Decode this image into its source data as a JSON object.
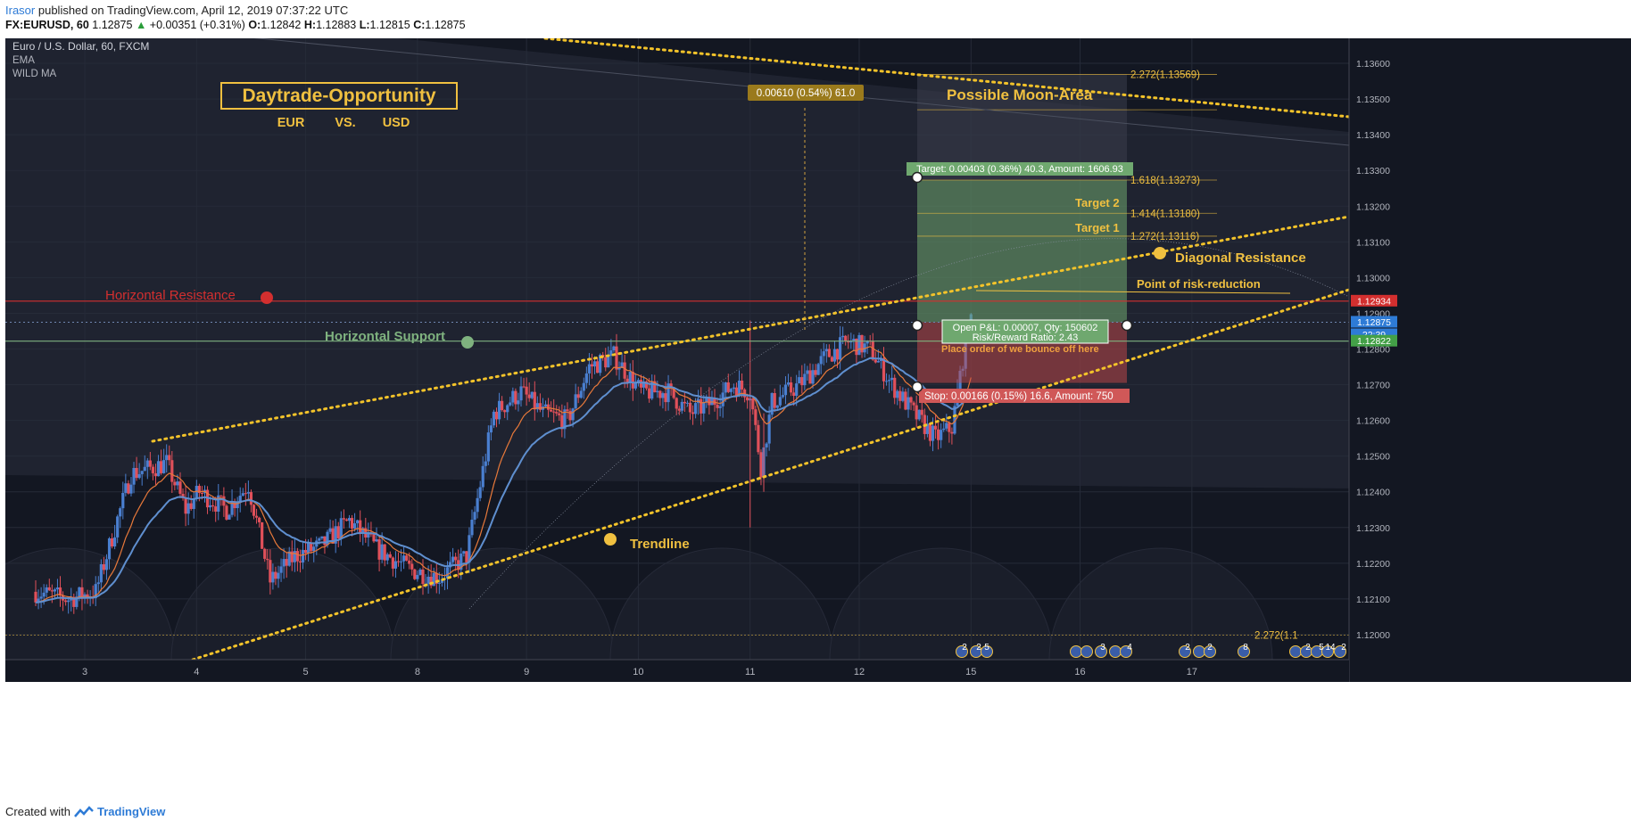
{
  "header": {
    "user": "Irasor",
    "published_text": "published on TradingView.com, April 12, 2019 07:37:22 UTC",
    "symbol": "FX:EURUSD, 60",
    "price": "1.12875",
    "change_arrow": "▲",
    "change": "+0.00351 (+0.31%)",
    "ohlc": [
      {
        "k": "O:",
        "v": "1.12842"
      },
      {
        "k": "H:",
        "v": "1.12883"
      },
      {
        "k": "L:",
        "v": "1.12815"
      },
      {
        "k": "C:",
        "v": "1.12875"
      }
    ]
  },
  "legend": {
    "instrument": "Euro / U.S. Dollar, 60, FXCM",
    "indicators": [
      "EMA",
      "WILD MA"
    ]
  },
  "annotations": {
    "title": "Daytrade-Opportunity",
    "pair": [
      "EUR",
      "VS.",
      "USD"
    ],
    "moon": "Possible Moon-Area",
    "horizontal_resistance": "Horizontal Resistance",
    "horizontal_support": "Horizontal Support",
    "trendline": "Trendline",
    "diagonal_resistance": "Diagonal Resistance",
    "risk_reduction": "Point of risk-reduction",
    "target1": "Target 1",
    "target2": "Target 2",
    "measure": "0.00610 (0.54%) 61.0",
    "target_box": "Target: 0.00403 (0.36%) 40.3, Amount: 1606.93",
    "pnl": "Open P&L: 0.00007, Qty: 150602",
    "rr": "Risk/Reward Ratio: 2.43",
    "bounce": "Place order of we bounce off here",
    "stop_box": "Stop: 0.00166 (0.15%) 16.6, Amount: 750",
    "fib": [
      {
        "label": "2.272(1.13569)",
        "price": 1.13569
      },
      {
        "label": "1.618(1.13273)",
        "price": 1.13273
      },
      {
        "label": "1.414(1.13180)",
        "price": 1.1318
      },
      {
        "label": "1.272(1.13116)",
        "price": 1.13116
      }
    ],
    "fib_bottom": "2.272(1.1",
    "event_badges": [
      "2",
      "2",
      "5",
      "3",
      "4",
      "2",
      "2",
      "8",
      "2",
      "5",
      "14",
      "2"
    ]
  },
  "footer": {
    "created": "Created with",
    "brand": "TradingView"
  },
  "colors": {
    "bg": "#131722",
    "up": "#4a7fd0",
    "down": "#e0505a",
    "dotted": "#f3c32a",
    "resistance": "#d32f2f",
    "support": "#7fb27f",
    "target": "#6fa86f",
    "stop": "#c94a4a",
    "ema": "#e8793a",
    "wild_ma": "#5f8fcf",
    "annotation": "#f0c040"
  },
  "chart_data": {
    "type": "candlestick",
    "title": "Euro / U.S. Dollar, 60, FXCM",
    "x_ticks": [
      "3",
      "4",
      "5",
      "8",
      "9",
      "10",
      "11",
      "12",
      "15",
      "16",
      "17"
    ],
    "ylim": [
      1.1193,
      1.1367
    ],
    "y_ticks": [
      "1.13600",
      "1.13500",
      "1.13400",
      "1.13300",
      "1.13200",
      "1.13100",
      "1.13000",
      "1.12900",
      "1.12800",
      "1.12700",
      "1.12600",
      "1.12500",
      "1.12400",
      "1.12300",
      "1.12200",
      "1.12100",
      "1.12000"
    ],
    "price_tags": [
      {
        "label": "1.12934",
        "price": 1.12934,
        "color": "#d32f2f"
      },
      {
        "label": "1.12875",
        "price": 1.12875,
        "color": "#2e7bd6"
      },
      {
        "label": "22:39",
        "price": 1.1284,
        "color": "#2e7bd6"
      },
      {
        "label": "1.12822",
        "price": 1.12822,
        "color": "#43a047"
      }
    ],
    "horizontal_resistance": 1.12934,
    "horizontal_support": 1.12822,
    "trade": {
      "entry": 1.12875,
      "target": 1.13273,
      "stop": 1.12705
    },
    "close_path": [
      [
        0,
        1.1212
      ],
      [
        12,
        1.121
      ],
      [
        22,
        1.1212
      ],
      [
        35,
        1.1245
      ],
      [
        48,
        1.1248
      ],
      [
        55,
        1.1235
      ],
      [
        60,
        1.124
      ],
      [
        70,
        1.1235
      ],
      [
        78,
        1.1242
      ],
      [
        86,
        1.1215
      ],
      [
        95,
        1.1222
      ],
      [
        105,
        1.1225
      ],
      [
        115,
        1.1232
      ],
      [
        125,
        1.1224
      ],
      [
        138,
        1.1218
      ],
      [
        148,
        1.1216
      ],
      [
        158,
        1.1222
      ],
      [
        168,
        1.1262
      ],
      [
        178,
        1.1268
      ],
      [
        186,
        1.1262
      ],
      [
        195,
        1.126
      ],
      [
        203,
        1.1275
      ],
      [
        212,
        1.1278
      ],
      [
        222,
        1.1268
      ],
      [
        232,
        1.1268
      ],
      [
        240,
        1.1262
      ],
      [
        248,
        1.1265
      ],
      [
        256,
        1.127
      ],
      [
        262,
        1.1268
      ],
      [
        266,
        1.1247
      ],
      [
        270,
        1.1265
      ],
      [
        280,
        1.127
      ],
      [
        290,
        1.1278
      ],
      [
        298,
        1.1282
      ],
      [
        306,
        1.128
      ],
      [
        314,
        1.127
      ],
      [
        322,
        1.1262
      ],
      [
        330,
        1.1255
      ],
      [
        336,
        1.1258
      ],
      [
        342,
        1.1287
      ]
    ]
  }
}
